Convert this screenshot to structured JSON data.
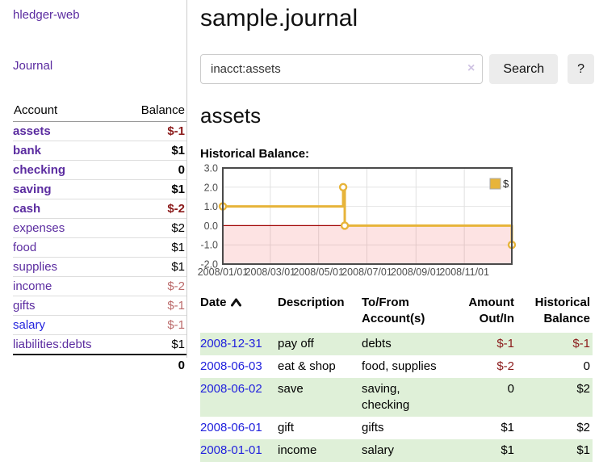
{
  "palette": {
    "link_purple": "#5b2ca0",
    "link_blue": "#2222dd",
    "neg_strong": "#8b1a1a",
    "neg_soft": "#bb6a6a",
    "row_green": "#dff0d8",
    "gold": "#e7b43a"
  },
  "app": {
    "brand": "hledger-web",
    "nav_journal": "Journal"
  },
  "sidebar": {
    "col_account": "Account",
    "col_balance": "Balance",
    "accounts": [
      {
        "name": "assets",
        "indent": 0,
        "bold": true,
        "balance": "$-1",
        "balance_tone": "neg-strong"
      },
      {
        "name": "bank",
        "indent": 1,
        "bold": true,
        "balance": "$1",
        "balance_tone": "normal"
      },
      {
        "name": "checking",
        "indent": 2,
        "bold": true,
        "balance": "0",
        "balance_tone": "normal"
      },
      {
        "name": "saving",
        "indent": 2,
        "bold": true,
        "balance": "$1",
        "balance_tone": "normal"
      },
      {
        "name": "cash",
        "indent": 1,
        "bold": true,
        "balance": "$-2",
        "balance_tone": "neg-strong"
      },
      {
        "name": "expenses",
        "indent": 0,
        "bold": false,
        "balance": "$2",
        "balance_tone": "normal"
      },
      {
        "name": "food",
        "indent": 1,
        "bold": false,
        "balance": "$1",
        "balance_tone": "normal"
      },
      {
        "name": "supplies",
        "indent": 1,
        "bold": false,
        "balance": "$1",
        "balance_tone": "normal"
      },
      {
        "name": "income",
        "indent": 0,
        "bold": false,
        "balance": "$-2",
        "balance_tone": "neg-soft"
      },
      {
        "name": "gifts",
        "indent": 1,
        "bold": false,
        "balance": "$-1",
        "balance_tone": "neg-soft"
      },
      {
        "name": "salary",
        "indent": 1,
        "bold": false,
        "balance": "$-1",
        "balance_tone": "neg-soft",
        "link_tone": "blue"
      },
      {
        "name": "liabilities:debts",
        "indent": 0,
        "bold": false,
        "balance": "$1",
        "balance_tone": "normal"
      }
    ],
    "total": "0"
  },
  "header": {
    "title": "sample.journal"
  },
  "search": {
    "value": "inacct:assets",
    "clear_icon": "×",
    "button_label": "Search",
    "help_label": "?"
  },
  "account_view": {
    "title": "assets",
    "chart_title": "Historical Balance:"
  },
  "chart_data": {
    "type": "line",
    "step": true,
    "title": "Historical Balance:",
    "legend": [
      {
        "label": "$",
        "color": "#e7b43a"
      }
    ],
    "legend_position": "top-right",
    "x_start": "2008-01-01",
    "x_span_days": 365,
    "x_tick_labels": [
      "2008/01/01",
      "2008/03/01",
      "2008/05/01",
      "2008/07/01",
      "2008/09/01",
      "2008/11/01"
    ],
    "y_ticks": [
      3.0,
      2.0,
      1.0,
      0.0,
      -1.0,
      -2.0
    ],
    "ylim": [
      -2.0,
      3.0
    ],
    "points": [
      {
        "date": "2008-01-01",
        "value": 1
      },
      {
        "date": "2008-06-01",
        "value": 2
      },
      {
        "date": "2008-06-03",
        "value": 0
      },
      {
        "date": "2008-12-31",
        "value": -1
      }
    ],
    "line_color": "#e7b43a",
    "marker_fill": "#ffffff",
    "below_zero_fill": "rgba(244,100,100,0.18)",
    "zero_line_color": "#a00000",
    "grid": true
  },
  "register": {
    "columns": [
      "Date",
      "Description",
      "To/From Account(s)",
      "Amount Out/In",
      "Historical Balance"
    ],
    "rows": [
      {
        "date": "2008-12-31",
        "description": "pay off",
        "accounts": "debts",
        "amount": "$-1",
        "balance": "$-1"
      },
      {
        "date": "2008-06-03",
        "description": "eat & shop",
        "accounts": "food, supplies",
        "amount": "$-2",
        "balance": "0"
      },
      {
        "date": "2008-06-02",
        "description": "save",
        "accounts": "saving, checking",
        "amount": "0",
        "balance": "$2"
      },
      {
        "date": "2008-06-01",
        "description": "gift",
        "accounts": "gifts",
        "amount": "$1",
        "balance": "$2"
      },
      {
        "date": "2008-01-01",
        "description": "income",
        "accounts": "salary",
        "amount": "$1",
        "balance": "$1"
      }
    ]
  }
}
